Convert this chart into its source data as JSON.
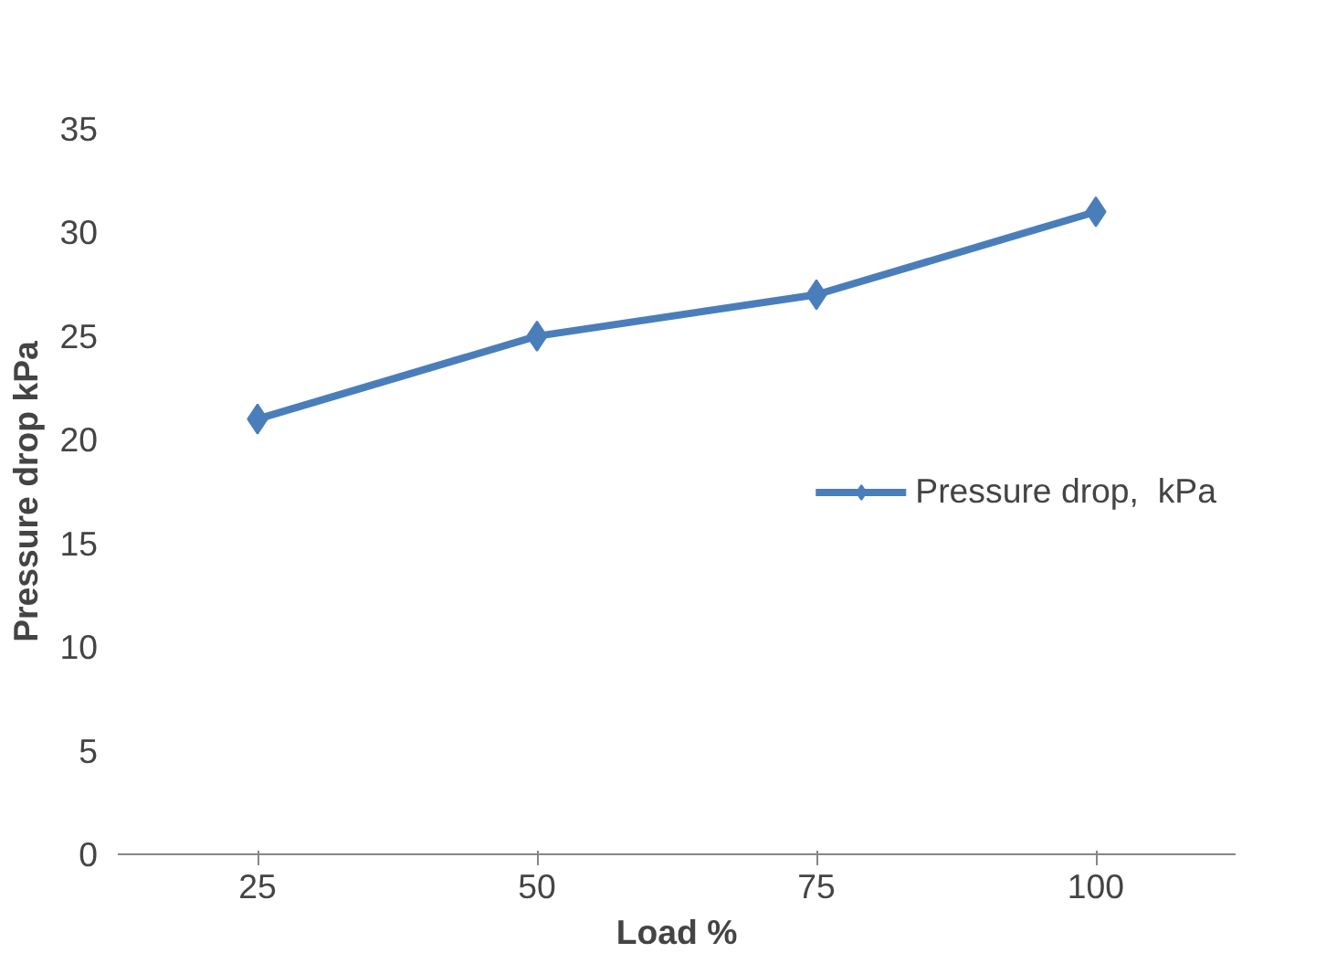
{
  "chart_data": {
    "type": "line",
    "xlabel": "Load %",
    "ylabel": "Pressure drop kPa",
    "categories": [
      "25",
      "50",
      "75",
      "100"
    ],
    "series": [
      {
        "name": "Pressure drop,  kPa",
        "color": "#4a7ebb",
        "values": [
          21,
          25,
          27,
          31
        ]
      }
    ],
    "ylim": [
      0,
      35
    ],
    "yticks": [
      0,
      5,
      10,
      15,
      20,
      25,
      30,
      35
    ],
    "grid": false,
    "legend": "right",
    "marker": "diamond",
    "line_style": "solid"
  }
}
